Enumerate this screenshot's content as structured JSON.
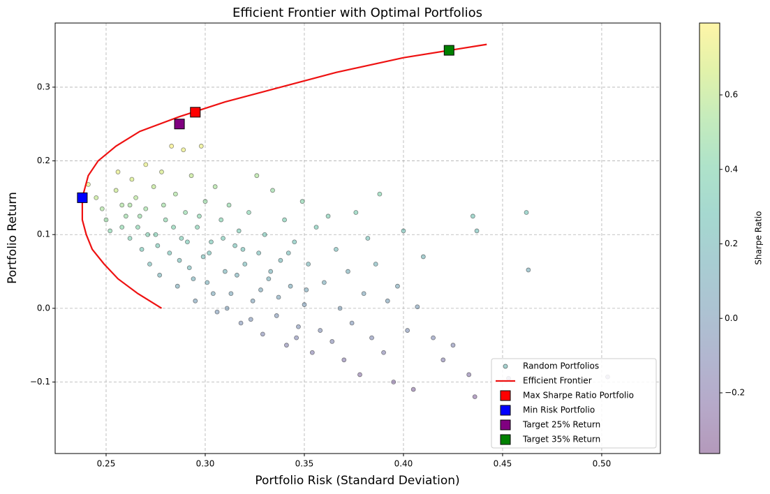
{
  "chart_data": {
    "type": "scatter",
    "title": "Efficient Frontier with Optimal Portfolios",
    "x_label": "Portfolio Risk (Standard Deviation)",
    "y_label": "Portfolio Return",
    "colorbar_label": "Sharpe Ratio",
    "colormap": "viridis",
    "grid": true,
    "legend_loc": "lower right",
    "xlim": [
      0.2243,
      0.5296
    ],
    "ylim": [
      -0.197,
      0.387
    ],
    "clim": [
      -0.363,
      0.793
    ],
    "xticks": [
      0.25,
      {
        "value": 0.3,
        "label": "0.30"
      },
      0.35,
      {
        "value": 0.4,
        "label": "0.40"
      },
      0.45,
      {
        "value": 0.5,
        "label": "0.50"
      }
    ],
    "yticks": [
      {
        "value": -0.1,
        "label": "−0.1"
      },
      {
        "value": 0,
        "label": "0.0"
      },
      0.1,
      0.2,
      0.3
    ],
    "cticks": [
      {
        "value": -0.2,
        "label": "−0.2"
      },
      {
        "value": 0,
        "label": "0.0"
      },
      0.2,
      0.4,
      0.6
    ],
    "series": [
      {
        "name": "Random Portfolios",
        "type": "scatter",
        "x": [
          0.241,
          0.245,
          0.248,
          0.25,
          0.252,
          0.255,
          0.256,
          0.258,
          0.26,
          0.262,
          0.263,
          0.265,
          0.266,
          0.268,
          0.27,
          0.27,
          0.272,
          0.274,
          0.275,
          0.277,
          0.278,
          0.28,
          0.282,
          0.283,
          0.285,
          0.286,
          0.288,
          0.289,
          0.29,
          0.292,
          0.293,
          0.295,
          0.296,
          0.298,
          0.299,
          0.3,
          0.301,
          0.303,
          0.305,
          0.306,
          0.308,
          0.31,
          0.312,
          0.313,
          0.315,
          0.317,
          0.318,
          0.32,
          0.322,
          0.324,
          0.326,
          0.327,
          0.329,
          0.33,
          0.332,
          0.334,
          0.336,
          0.338,
          0.34,
          0.341,
          0.343,
          0.345,
          0.347,
          0.349,
          0.35,
          0.352,
          0.354,
          0.356,
          0.358,
          0.36,
          0.362,
          0.364,
          0.366,
          0.368,
          0.37,
          0.372,
          0.374,
          0.376,
          0.378,
          0.38,
          0.382,
          0.384,
          0.386,
          0.388,
          0.39,
          0.392,
          0.395,
          0.397,
          0.4,
          0.402,
          0.405,
          0.407,
          0.41,
          0.415,
          0.42,
          0.425,
          0.433,
          0.435,
          0.437,
          0.436,
          0.453,
          0.462,
          0.463,
          0.503,
          0.258,
          0.262,
          0.267,
          0.271,
          0.276,
          0.279,
          0.284,
          0.287,
          0.291,
          0.294,
          0.297,
          0.302,
          0.304,
          0.309,
          0.311,
          0.316,
          0.319,
          0.323,
          0.328,
          0.333,
          0.337,
          0.342,
          0.346,
          0.351
        ],
        "values": [
          0.168,
          0.15,
          0.135,
          0.12,
          0.105,
          0.16,
          0.185,
          0.14,
          0.125,
          0.095,
          0.175,
          0.15,
          0.11,
          0.08,
          0.195,
          0.135,
          0.06,
          0.165,
          0.1,
          0.045,
          0.185,
          0.12,
          0.075,
          0.22,
          0.155,
          0.03,
          0.095,
          0.215,
          0.13,
          0.055,
          0.18,
          0.01,
          0.11,
          0.22,
          0.07,
          0.145,
          0.035,
          0.09,
          0.165,
          -0.005,
          0.12,
          0.05,
          0.14,
          0.02,
          0.085,
          0.105,
          -0.02,
          0.06,
          0.13,
          0.01,
          0.18,
          0.075,
          -0.035,
          0.1,
          0.04,
          0.16,
          -0.01,
          0.065,
          0.12,
          -0.05,
          0.03,
          0.09,
          -0.025,
          0.145,
          0.005,
          0.06,
          -0.06,
          0.11,
          -0.03,
          0.035,
          0.125,
          -0.045,
          0.08,
          0,
          -0.07,
          0.05,
          -0.02,
          0.13,
          -0.09,
          0.02,
          0.095,
          -0.04,
          0.06,
          0.155,
          -0.06,
          0.01,
          -0.1,
          0.03,
          0.105,
          -0.03,
          -0.11,
          0.002,
          0.07,
          -0.04,
          -0.07,
          -0.05,
          -0.09,
          0.125,
          0.105,
          -0.12,
          -0.095,
          0.13,
          0.052,
          -0.093,
          0.11,
          0.14,
          0.125,
          0.1,
          0.085,
          0.14,
          0.11,
          0.065,
          0.09,
          0.04,
          0.125,
          0.075,
          0.02,
          0.095,
          0,
          0.045,
          0.08,
          -0.015,
          0.025,
          0.05,
          0.015,
          0.075,
          -0.04,
          0.025
        ],
        "color_values": [
          0.7,
          0.61,
          0.54,
          0.48,
          0.42,
          0.63,
          0.72,
          0.54,
          0.48,
          0.36,
          0.67,
          0.57,
          0.41,
          0.3,
          0.72,
          0.5,
          0.22,
          0.6,
          0.36,
          0.16,
          0.67,
          0.43,
          0.27,
          0.78,
          0.54,
          0.1,
          0.33,
          0.74,
          0.45,
          0.19,
          0.61,
          0.03,
          0.37,
          0.74,
          0.23,
          0.48,
          0.12,
          0.3,
          0.54,
          -0.02,
          0.39,
          0.16,
          0.45,
          0.06,
          0.27,
          0.33,
          -0.06,
          0.19,
          0.4,
          0.03,
          0.55,
          0.23,
          -0.11,
          0.3,
          0.12,
          0.48,
          -0.03,
          0.19,
          0.35,
          -0.15,
          0.09,
          0.26,
          -0.07,
          0.42,
          0.01,
          0.17,
          -0.17,
          0.31,
          -0.08,
          0.1,
          0.35,
          -0.12,
          0.22,
          0,
          -0.19,
          0.13,
          -0.05,
          0.35,
          -0.24,
          0.05,
          0.25,
          -0.1,
          0.16,
          0.4,
          -0.15,
          0.03,
          -0.25,
          0.08,
          0.26,
          -0.07,
          -0.27,
          0,
          0.17,
          -0.1,
          -0.17,
          -0.12,
          -0.21,
          0.29,
          0.24,
          -0.28,
          -0.21,
          0.28,
          0.11,
          -0.18,
          0.43,
          0.53,
          0.47,
          0.37,
          0.31,
          0.5,
          0.39,
          0.23,
          0.31,
          0.14,
          0.42,
          0.25,
          0.07,
          0.31,
          0,
          0.14,
          0.25,
          -0.05,
          0.08,
          0.15,
          0.04,
          0.22,
          -0.12,
          0.07
        ]
      },
      {
        "name": "Efficient Frontier",
        "type": "line",
        "color": "#ee1111",
        "x": [
          0.278,
          0.266,
          0.256,
          0.249,
          0.243,
          0.24,
          0.238,
          0.238,
          0.241,
          0.246,
          0.255,
          0.267,
          0.287,
          0.31,
          0.338,
          0.366,
          0.4,
          0.442
        ],
        "values": [
          0,
          0.02,
          0.04,
          0.06,
          0.08,
          0.1,
          0.12,
          0.15,
          0.18,
          0.2,
          0.22,
          0.24,
          0.26,
          0.28,
          0.3,
          0.32,
          0.34,
          0.358
        ]
      },
      {
        "name": "Max Sharpe Ratio Portfolio",
        "type": "marker",
        "color": "#ff0000",
        "x": [
          0.295
        ],
        "values": [
          0.266
        ]
      },
      {
        "name": "Min Risk Portfolio",
        "type": "marker",
        "color": "#0000ff",
        "x": [
          0.238
        ],
        "values": [
          0.15
        ]
      },
      {
        "name": "Target 25% Return",
        "type": "marker",
        "color": "#800080",
        "x": [
          0.287
        ],
        "values": [
          0.25
        ]
      },
      {
        "name": "Target 35% Return",
        "type": "marker",
        "color": "#008000",
        "x": [
          0.423
        ],
        "values": [
          0.35
        ]
      }
    ]
  }
}
